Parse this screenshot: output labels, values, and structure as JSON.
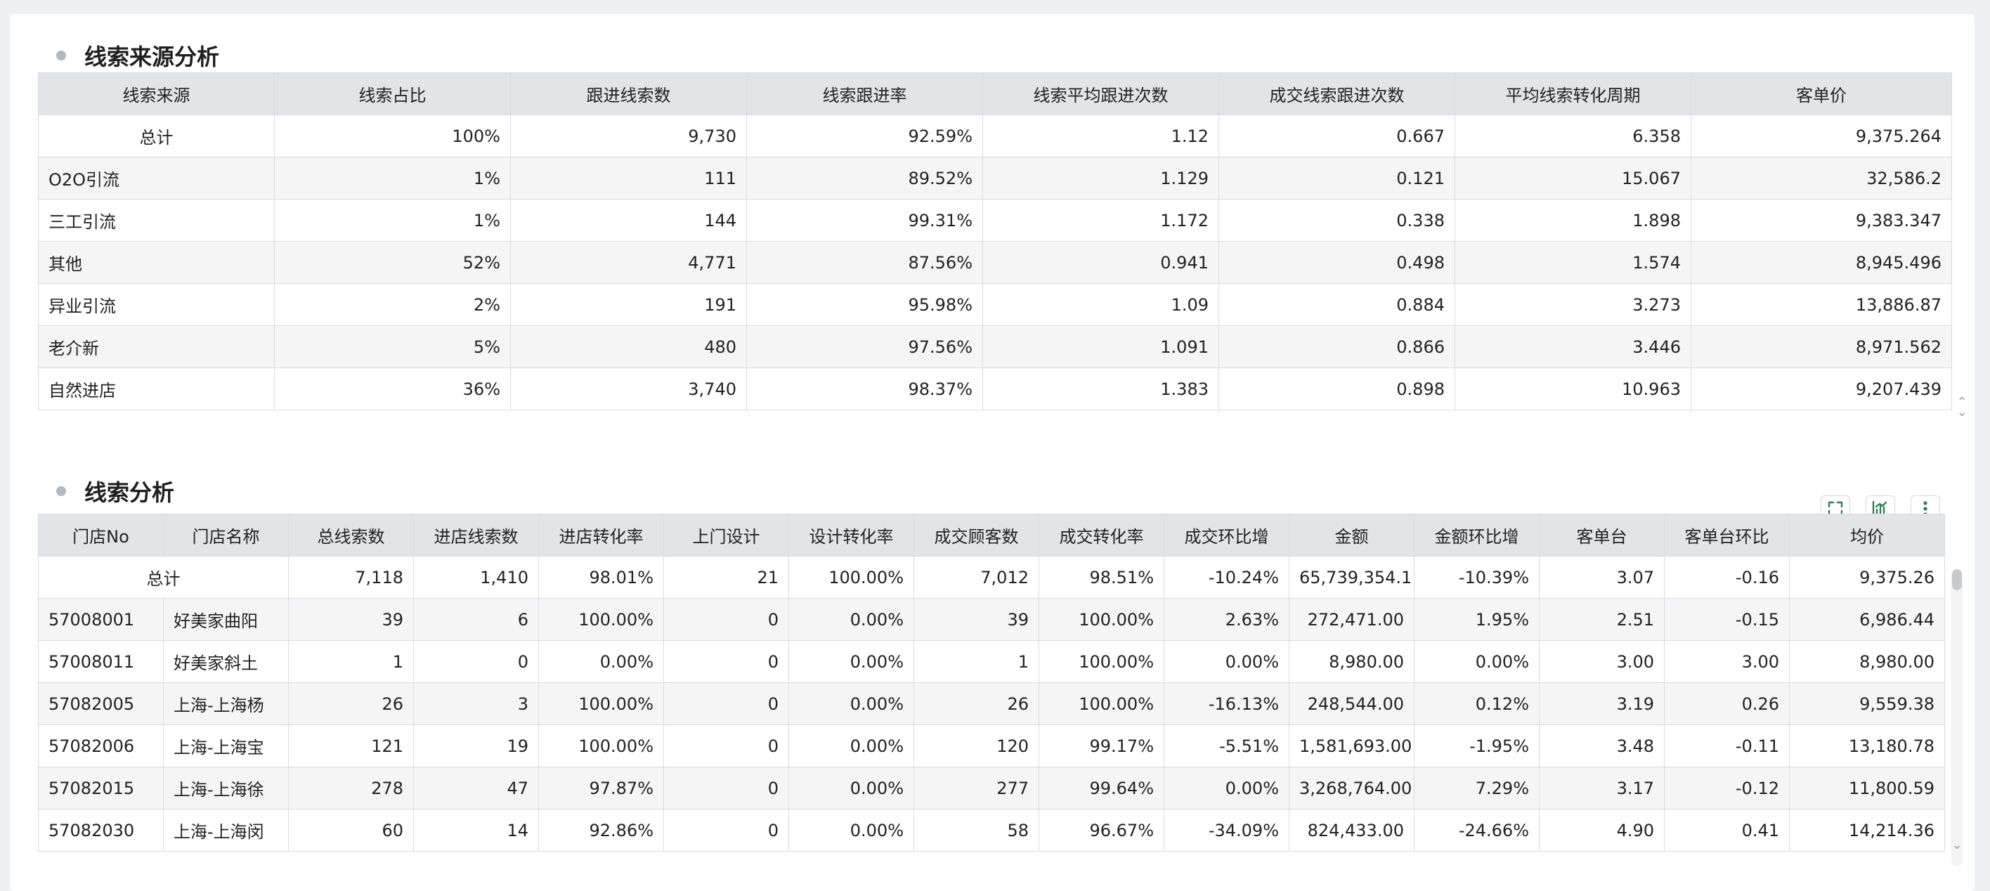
{
  "section1": {
    "title": "线索来源分析",
    "columns": [
      "线索来源",
      "线索占比",
      "跟进线索数",
      "线索跟进率",
      "线索平均跟进次数",
      "成交线索跟进次数",
      "平均线索转化周期",
      "客单价"
    ],
    "rows": [
      [
        "总计",
        "100%",
        "9,730",
        "92.59%",
        "1.12",
        "0.667",
        "6.358",
        "9,375.264"
      ],
      [
        "O2O引流",
        "1%",
        "111",
        "89.52%",
        "1.129",
        "0.121",
        "15.067",
        "32,586.2"
      ],
      [
        "三工引流",
        "1%",
        "144",
        "99.31%",
        "1.172",
        "0.338",
        "1.898",
        "9,383.347"
      ],
      [
        "其他",
        "52%",
        "4,771",
        "87.56%",
        "0.941",
        "0.498",
        "1.574",
        "8,945.496"
      ],
      [
        "异业引流",
        "2%",
        "191",
        "95.98%",
        "1.09",
        "0.884",
        "3.273",
        "13,886.87"
      ],
      [
        "老介新",
        "5%",
        "480",
        "97.56%",
        "1.091",
        "0.866",
        "3.446",
        "8,971.562"
      ],
      [
        "自然进店",
        "36%",
        "3,740",
        "98.37%",
        "1.383",
        "0.898",
        "10.963",
        "9,207.439"
      ]
    ]
  },
  "section2": {
    "title": "线索分析",
    "toolbar": {
      "fullscreen_icon": "fullscreen-icon",
      "chart_icon": "chart-icon",
      "more_icon": "more-vertical-icon"
    },
    "columns": [
      "门店No",
      "门店名称",
      "总线索数",
      "进店线索数",
      "进店转化率",
      "上门设计",
      "设计转化率",
      "成交顾客数",
      "成交转化率",
      "成交环比增",
      "金额",
      "金额环比增",
      "客单台",
      "客单台环比",
      "均价"
    ],
    "total_label": "总计",
    "total_values": [
      "7,118",
      "1,410",
      "98.01%",
      "21",
      "100.00%",
      "7,012",
      "98.51%",
      "-10.24%",
      "65,739,354.1",
      "-10.39%",
      "3.07",
      "-0.16",
      "9,375.26"
    ],
    "rows": [
      [
        "57008001",
        "好美家曲阳",
        "39",
        "6",
        "100.00%",
        "0",
        "0.00%",
        "39",
        "100.00%",
        "2.63%",
        "272,471.00",
        "1.95%",
        "2.51",
        "-0.15",
        "6,986.44"
      ],
      [
        "57008011",
        "好美家斜土",
        "1",
        "0",
        "0.00%",
        "0",
        "0.00%",
        "1",
        "100.00%",
        "0.00%",
        "8,980.00",
        "0.00%",
        "3.00",
        "3.00",
        "8,980.00"
      ],
      [
        "57082005",
        "上海-上海杨",
        "26",
        "3",
        "100.00%",
        "0",
        "0.00%",
        "26",
        "100.00%",
        "-16.13%",
        "248,544.00",
        "0.12%",
        "3.19",
        "0.26",
        "9,559.38"
      ],
      [
        "57082006",
        "上海-上海宝",
        "121",
        "19",
        "100.00%",
        "0",
        "0.00%",
        "120",
        "99.17%",
        "-5.51%",
        "1,581,693.00",
        "-1.95%",
        "3.48",
        "-0.11",
        "13,180.78"
      ],
      [
        "57082015",
        "上海-上海徐",
        "278",
        "47",
        "97.87%",
        "0",
        "0.00%",
        "277",
        "99.64%",
        "0.00%",
        "3,268,764.00",
        "7.29%",
        "3.17",
        "-0.12",
        "11,800.59"
      ],
      [
        "57082030",
        "上海-上海闵",
        "60",
        "14",
        "92.86%",
        "0",
        "0.00%",
        "58",
        "96.67%",
        "-34.09%",
        "824,433.00",
        "-24.66%",
        "4.90",
        "0.41",
        "14,214.36"
      ]
    ]
  },
  "colors": {
    "accent": "#2e7d5b",
    "header_bg": "#e3e4e7",
    "alt_row_bg": "#f5f5f5"
  }
}
